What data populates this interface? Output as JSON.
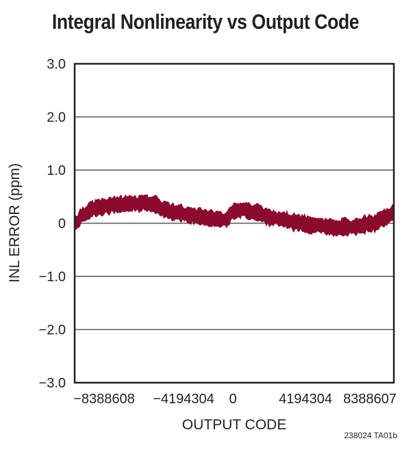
{
  "chart_data": {
    "type": "line",
    "title": "Integral Nonlinearity vs Output Code",
    "xlabel": "OUTPUT CODE",
    "ylabel": "INL ERROR (ppm)",
    "xlim": [
      -8388608,
      8388607
    ],
    "ylim": [
      -3.0,
      3.0
    ],
    "x_ticks": [
      "−8388608",
      "−4194304",
      "0",
      "4194304",
      "8388607"
    ],
    "y_ticks": [
      "3.0",
      "2.0",
      "1.0",
      "0",
      "−1.0",
      "−2.0",
      "−3.0"
    ],
    "grid": "horizontal",
    "legend": null,
    "series": [
      {
        "name": "INL",
        "color": "#8b0a2e",
        "x": [
          -8388608,
          -7864320,
          -7340032,
          -6291456,
          -5242880,
          -4718592,
          -4194304,
          -3670016,
          -3145728,
          -2097152,
          -1048576,
          -524288,
          0,
          524288,
          1048576,
          2097152,
          3145728,
          4194304,
          5242880,
          6291456,
          7340032,
          7864320,
          8388607
        ],
        "values": [
          0.0,
          0.18,
          0.28,
          0.35,
          0.36,
          0.38,
          0.37,
          0.25,
          0.2,
          0.14,
          0.08,
          0.06,
          0.22,
          0.25,
          0.2,
          0.1,
          0.02,
          -0.04,
          -0.08,
          -0.07,
          0.0,
          0.1,
          0.2
        ]
      }
    ]
  },
  "footer_code": "238024 TA01b"
}
